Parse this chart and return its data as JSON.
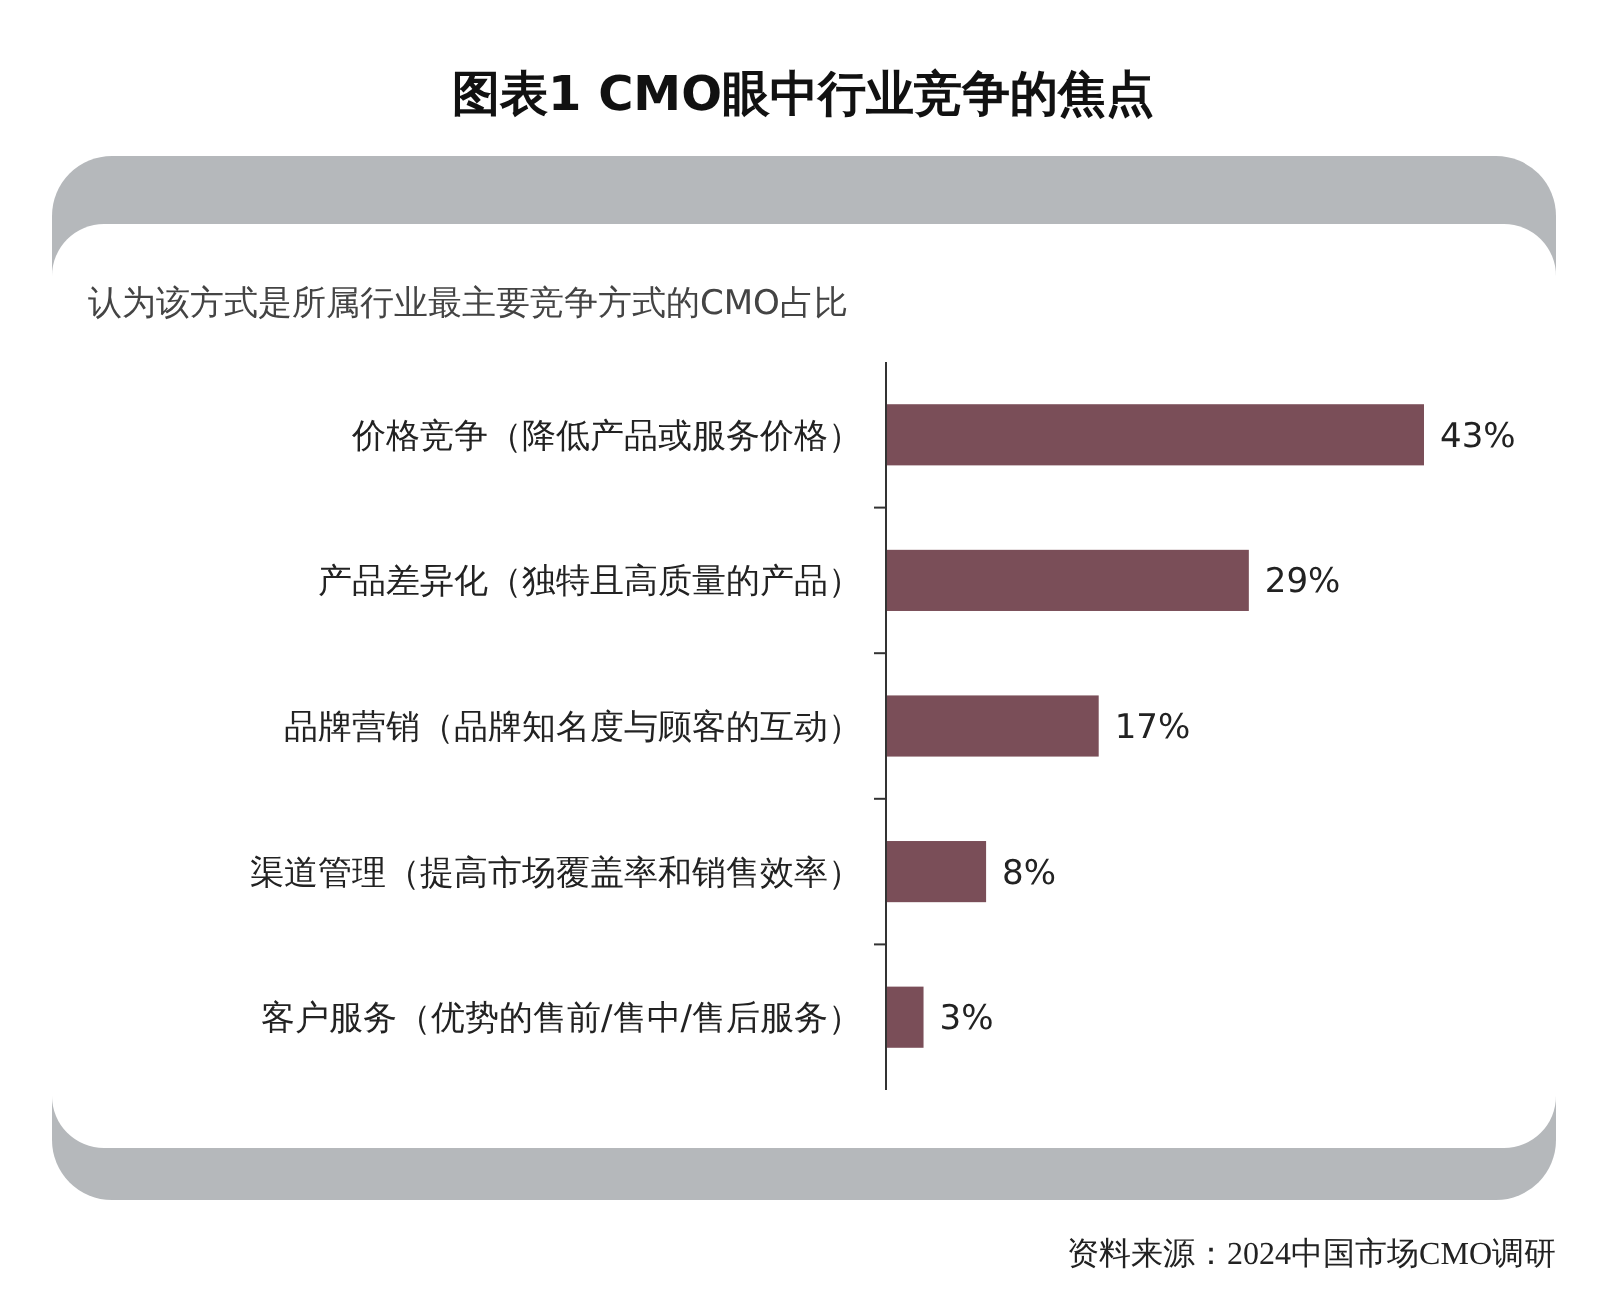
{
  "chart_data": {
    "type": "bar",
    "orientation": "horizontal",
    "title": "图表1  CMO眼中行业竞争的焦点",
    "subtitle": "认为该方式是所属行业最主要竞争方式的CMO占比",
    "categories": [
      "价格竞争（降低产品或服务价格）",
      "产品差异化（独特且高质量的产品）",
      "品牌营销（品牌知名度与顾客的互动）",
      "渠道管理（提高市场覆盖率和销售效率）",
      "客户服务（优势的售前/售中/售后服务）"
    ],
    "values": [
      43,
      29,
      17,
      8,
      3
    ],
    "value_labels": [
      "43%",
      "29%",
      "17%",
      "8%",
      "3%"
    ],
    "color": "#7a4e58",
    "annotations": [
      "资料来源：2024中国市场CMO调研"
    ]
  }
}
